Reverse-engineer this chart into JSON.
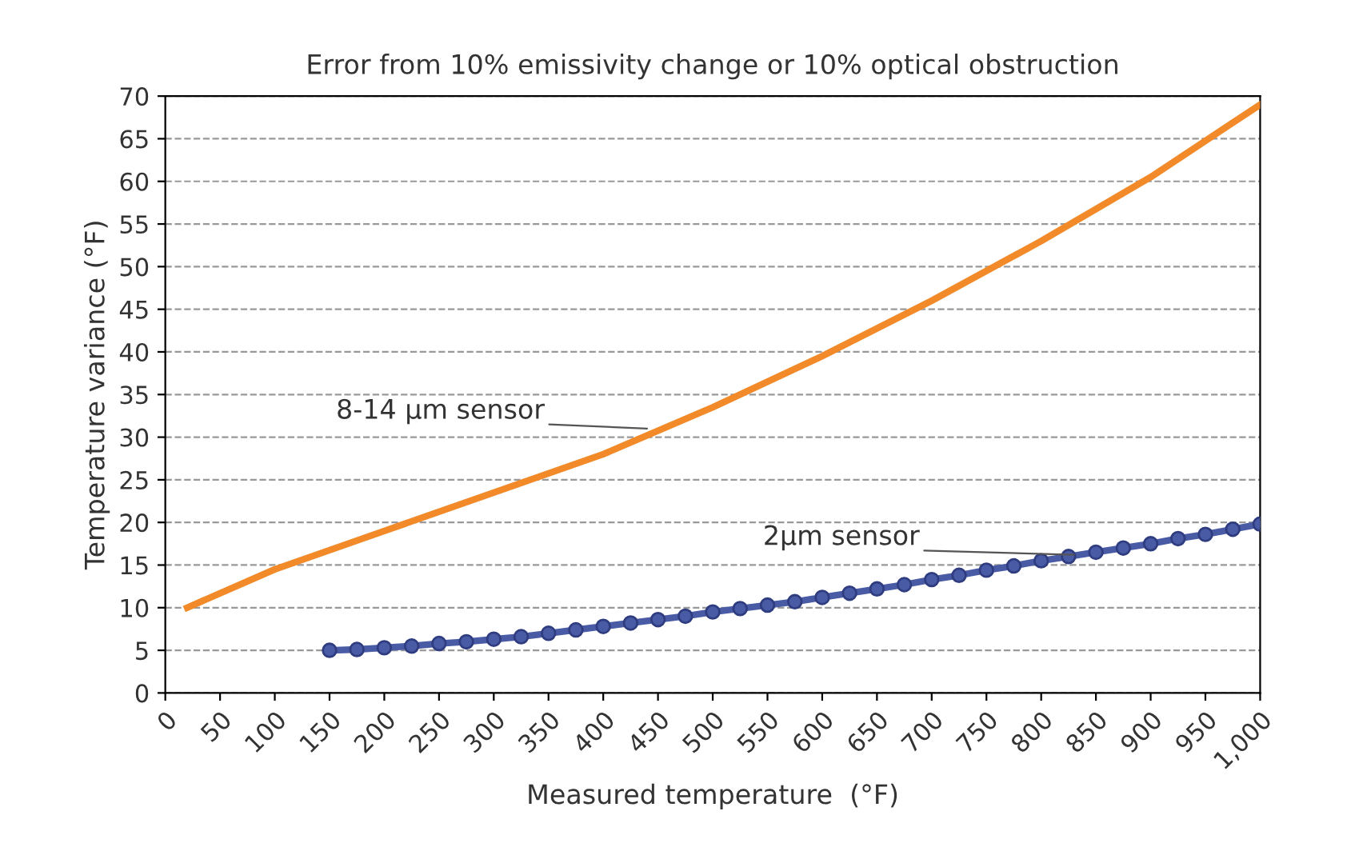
{
  "chart_data": {
    "type": "line",
    "title": "Error from 10% emissivity change or 10% optical obstruction",
    "xlabel": "Measured temperature  (°F)",
    "ylabel": "Temperature variance (°F)",
    "xlim": [
      0,
      1000
    ],
    "ylim": [
      0,
      70
    ],
    "xticks": [
      0,
      50,
      100,
      150,
      200,
      250,
      300,
      350,
      400,
      450,
      500,
      550,
      600,
      650,
      700,
      750,
      800,
      850,
      900,
      950,
      {
        "value": 1000,
        "label": "1,000"
      }
    ],
    "yticks": [
      0,
      5,
      10,
      15,
      20,
      25,
      30,
      35,
      40,
      45,
      50,
      55,
      60,
      65,
      70
    ],
    "grid": "y",
    "legend": false,
    "series": [
      {
        "color": "#f28a2a",
        "marker": "none",
        "x": [
          20,
          100,
          200,
          300,
          400,
          500,
          600,
          700,
          800,
          900,
          1000
        ],
        "values": [
          10,
          14.5,
          19,
          23.5,
          28,
          33.5,
          39.5,
          46,
          53,
          60.5,
          69
        ]
      },
      {
        "color": "#4a5ba5",
        "marker": "circle",
        "x": [
          150,
          175,
          200,
          225,
          250,
          275,
          300,
          325,
          350,
          375,
          400,
          425,
          450,
          475,
          500,
          525,
          550,
          575,
          600,
          625,
          650,
          675,
          700,
          725,
          750,
          775,
          800,
          825,
          850,
          875,
          900,
          925,
          950,
          975,
          1000
        ],
        "values": [
          5.0,
          5.1,
          5.3,
          5.5,
          5.8,
          6.0,
          6.3,
          6.6,
          7.0,
          7.4,
          7.8,
          8.2,
          8.6,
          9.0,
          9.5,
          9.9,
          10.3,
          10.7,
          11.2,
          11.7,
          12.2,
          12.7,
          13.3,
          13.8,
          14.4,
          14.9,
          15.5,
          16.0,
          16.5,
          17.0,
          17.5,
          18.1,
          18.6,
          19.2,
          19.8
        ]
      }
    ],
    "annotations": [
      {
        "text": "8-14 μm sensor",
        "x": 440,
        "y": 31
      },
      {
        "text": "2μm sensor",
        "x": 830,
        "y": 16.2
      }
    ]
  }
}
